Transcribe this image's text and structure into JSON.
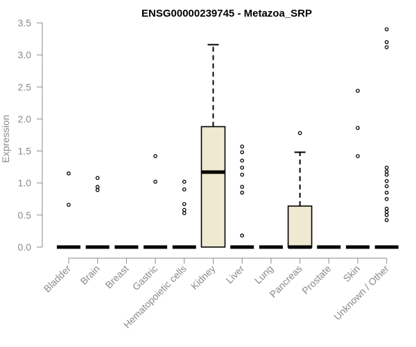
{
  "chart_data": {
    "type": "box",
    "title": "ENSG00000239745 - Metazoa_SRP",
    "xlabel": "",
    "ylabel": "Expression",
    "ylim": [
      0,
      3.5
    ],
    "yticks": [
      "0.0",
      "0.5",
      "1.0",
      "1.5",
      "2.0",
      "2.5",
      "3.0",
      "3.5"
    ],
    "categories": [
      "Bladder",
      "Brain",
      "Breast",
      "Gastric",
      "Hematopoietic cells",
      "Kidney",
      "Liver",
      "Lung",
      "Pancreas",
      "Prostate",
      "Skin",
      "Unknown / Other"
    ],
    "boxes": [
      {
        "name": "Bladder",
        "q1": 0,
        "median": 0,
        "q3": 0,
        "whisker_low": 0,
        "whisker_high": 0,
        "outliers": [
          0.66,
          1.15
        ]
      },
      {
        "name": "Brain",
        "q1": 0,
        "median": 0,
        "q3": 0,
        "whisker_low": 0,
        "whisker_high": 0,
        "outliers": [
          0.89,
          0.94,
          1.08
        ]
      },
      {
        "name": "Breast",
        "q1": 0,
        "median": 0,
        "q3": 0,
        "whisker_low": 0,
        "whisker_high": 0,
        "outliers": []
      },
      {
        "name": "Gastric",
        "q1": 0,
        "median": 0,
        "q3": 0,
        "whisker_low": 0,
        "whisker_high": 0,
        "outliers": [
          1.02,
          1.42
        ]
      },
      {
        "name": "Hematopoietic cells",
        "q1": 0,
        "median": 0,
        "q3": 0,
        "whisker_low": 0,
        "whisker_high": 0,
        "outliers": [
          0.53,
          0.58,
          0.67,
          0.9,
          1.02
        ]
      },
      {
        "name": "Kidney",
        "q1": 0,
        "median": 1.17,
        "q3": 1.88,
        "whisker_low": 0,
        "whisker_high": 3.16,
        "outliers": []
      },
      {
        "name": "Liver",
        "q1": 0,
        "median": 0,
        "q3": 0,
        "whisker_low": 0,
        "whisker_high": 0,
        "outliers": [
          0.18,
          0.85,
          0.94,
          1.13,
          1.24,
          1.35,
          1.48,
          1.57
        ]
      },
      {
        "name": "Lung",
        "q1": 0,
        "median": 0,
        "q3": 0,
        "whisker_low": 0,
        "whisker_high": 0,
        "outliers": []
      },
      {
        "name": "Pancreas",
        "q1": 0,
        "median": 0,
        "q3": 0.64,
        "whisker_low": 0,
        "whisker_high": 1.48,
        "outliers": [
          1.78
        ]
      },
      {
        "name": "Prostate",
        "q1": 0,
        "median": 0,
        "q3": 0,
        "whisker_low": 0,
        "whisker_high": 0,
        "outliers": []
      },
      {
        "name": "Skin",
        "q1": 0,
        "median": 0,
        "q3": 0,
        "whisker_low": 0,
        "whisker_high": 0,
        "outliers": [
          1.42,
          1.86,
          2.44
        ]
      },
      {
        "name": "Unknown / Other",
        "q1": 0,
        "median": 0,
        "q3": 0,
        "whisker_low": 0,
        "whisker_high": 0,
        "outliers": [
          0.42,
          0.5,
          0.55,
          0.6,
          0.75,
          0.85,
          0.95,
          1.03,
          1.13,
          1.18,
          1.24,
          3.12,
          3.2,
          3.4
        ]
      }
    ],
    "box_fill": "#efe9d1",
    "grid": false,
    "legend": "none"
  }
}
